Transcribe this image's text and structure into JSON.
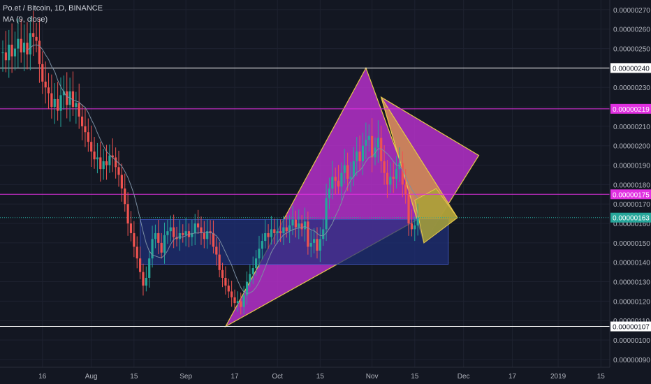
{
  "header": {
    "symbol_line": "Po.et / Bitcoin, 1D, BINANCE",
    "indicator_line": "MA (9, close)"
  },
  "colors": {
    "background": "#131722",
    "up": "#26a69a",
    "down": "#ef5350",
    "ma": "#7b8fa3",
    "magenta": "#e030e0",
    "triangle_fill": "#b530c9",
    "triangle_edge": "#e6c84a",
    "orange_fill": "#d08f4e",
    "yellow_fill": "#a8a435",
    "box_fill": "#1f2f7a",
    "current_label": "#26a69a"
  },
  "chart_data": {
    "type": "candlestick",
    "interval": "1D",
    "y_axis": {
      "min": 8.6e-07,
      "max": 2.75e-06,
      "ticks": [
        "0.00000090",
        "0.00000100",
        "0.00000110",
        "0.00000120",
        "0.00000130",
        "0.00000140",
        "0.00000150",
        "0.00000160",
        "0.00000170",
        "0.00000180",
        "0.00000190",
        "0.00000200",
        "0.00000210",
        "0.00000220",
        "0.00000230",
        "0.00000240",
        "0.00000250",
        "0.00000260",
        "0.00000270"
      ],
      "tick_values": [
        9e-07,
        1e-06,
        1.1e-06,
        1.2e-06,
        1.3e-06,
        1.4e-06,
        1.5e-06,
        1.6e-06,
        1.7e-06,
        1.8e-06,
        1.9e-06,
        2e-06,
        2.1e-06,
        2.2e-06,
        2.3e-06,
        2.4e-06,
        2.5e-06,
        2.6e-06,
        2.7e-06
      ]
    },
    "x_axis": {
      "first_date": "2018-07-03",
      "last_date": "2019-01-17",
      "labels": [
        {
          "date": "2018-07-16",
          "text": "16"
        },
        {
          "date": "2018-08-01",
          "text": "Aug"
        },
        {
          "date": "2018-08-15",
          "text": "15"
        },
        {
          "date": "2018-09-01",
          "text": "Sep"
        },
        {
          "date": "2018-09-17",
          "text": "17"
        },
        {
          "date": "2018-10-01",
          "text": "Oct"
        },
        {
          "date": "2018-10-15",
          "text": "15"
        },
        {
          "date": "2018-11-01",
          "text": "Nov"
        },
        {
          "date": "2018-11-15",
          "text": "15"
        },
        {
          "date": "2018-12-01",
          "text": "Dec"
        },
        {
          "date": "2018-12-17",
          "text": "17"
        },
        {
          "date": "2019-01-01",
          "text": "2019"
        },
        {
          "date": "2019-01-15",
          "text": "15"
        }
      ]
    },
    "start_date": "2018-07-03",
    "closes": [
      2.48e-06,
      2.44e-06,
      2.52e-06,
      2.46e-06,
      2.5e-06,
      2.55e-06,
      2.48e-06,
      2.53e-06,
      2.47e-06,
      2.58e-06,
      2.56e-06,
      2.54e-06,
      2.42e-06,
      2.33e-06,
      2.3e-06,
      2.27e-06,
      2.2e-06,
      2.24e-06,
      2.18e-06,
      2.26e-06,
      2.28e-06,
      2.21e-06,
      2.28e-06,
      2.2e-06,
      2.22e-06,
      2.15e-06,
      2.1e-06,
      2.07e-06,
      2.02e-06,
      1.97e-06,
      1.93e-06,
      1.94e-06,
      1.88e-06,
      1.92e-06,
      1.9e-06,
      1.95e-06,
      1.94e-06,
      1.89e-06,
      1.85e-06,
      1.78e-06,
      1.7e-06,
      1.6e-06,
      1.55e-06,
      1.48e-06,
      1.42e-06,
      1.35e-06,
      1.28e-06,
      1.32e-06,
      1.42e-06,
      1.52e-06,
      1.55e-06,
      1.5e-06,
      1.45e-06,
      1.54e-06,
      1.56e-06,
      1.58e-06,
      1.53e-06,
      1.52e-06,
      1.55e-06,
      1.54e-06,
      1.56e-06,
      1.53e-06,
      1.55e-06,
      1.6e-06,
      1.58e-06,
      1.55e-06,
      1.52e-06,
      1.56e-06,
      1.55e-06,
      1.48e-06,
      1.44e-06,
      1.36e-06,
      1.32e-06,
      1.28e-06,
      1.25e-06,
      1.22e-06,
      1.19e-06,
      1.2e-06,
      1.17e-06,
      1.23e-06,
      1.3e-06,
      1.34e-06,
      1.37e-06,
      1.42e-06,
      1.47e-06,
      1.51e-06,
      1.55e-06,
      1.53e-06,
      1.57e-06,
      1.55e-06,
      1.56e-06,
      1.55e-06,
      1.58e-06,
      1.56e-06,
      1.59e-06,
      1.62e-06,
      1.58e-06,
      1.6e-06,
      1.57e-06,
      1.61e-06,
      1.48e-06,
      1.5e-06,
      1.52e-06,
      1.46e-06,
      1.52e-06,
      1.57e-06,
      1.73e-06,
      1.78e-06,
      1.84e-06,
      1.82e-06,
      1.79e-06,
      1.86e-06,
      1.9e-06,
      1.83e-06,
      1.84e-06,
      1.92e-06,
      1.97e-06,
      1.92e-06,
      2e-06,
      2.03e-06,
      2.05e-06,
      1.94e-06,
      1.99e-06,
      2.04e-06,
      1.92e-06,
      1.86e-06,
      1.8e-06,
      1.84e-06,
      1.83e-06,
      1.88e-06,
      1.91e-06,
      1.8e-06,
      1.75e-06,
      1.6e-06,
      1.57e-06,
      1.59e-06,
      1.63e-06
    ],
    "series": [
      {
        "name": "Po.et / Bitcoin",
        "type": "candlestick"
      },
      {
        "name": "MA (9, close)",
        "type": "line"
      }
    ],
    "last_price": "0.00000163",
    "horizontal_lines": [
      {
        "price": 2.4e-06,
        "label": "0.00000240",
        "color": "#ffffff"
      },
      {
        "price": 2.19e-06,
        "label": "0.00000219",
        "color": "#e030e0"
      },
      {
        "price": 1.75e-06,
        "label": "0.00000175",
        "color": "#e030e0"
      },
      {
        "price": 1.07e-06,
        "label": "0.00000107",
        "color": "#ffffff"
      }
    ],
    "shapes": [
      {
        "type": "triangle",
        "points": [
          [
            "2018-09-14",
            1.07e-06
          ],
          [
            "2018-10-30",
            2.4e-06
          ],
          [
            "2018-11-17",
            1.63e-06
          ]
        ]
      },
      {
        "type": "triangle",
        "points": [
          [
            "2018-11-04",
            2.25e-06
          ],
          [
            "2018-12-06",
            1.95e-06
          ],
          [
            "2018-11-18",
            1.5e-06
          ]
        ]
      },
      {
        "type": "triangle",
        "points": [
          [
            "2018-11-04",
            2.25e-06
          ],
          [
            "2018-11-29",
            1.63e-06
          ],
          [
            "2018-11-18",
            1.5e-06
          ]
        ]
      },
      {
        "type": "rectangle",
        "from": [
          "2018-08-17",
          1.62e-06
        ],
        "to": [
          "2018-11-26",
          1.39e-06
        ]
      }
    ]
  }
}
